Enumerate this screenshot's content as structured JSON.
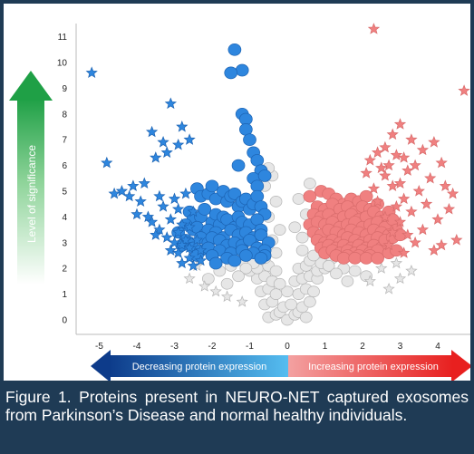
{
  "figure": {
    "caption": "Figure 1. Proteins present in NEURO-NET captured exosomes from Parkinson’s Disease and normal healthy individuals.",
    "colors": {
      "background": "#1f3b55",
      "decreased": "#2e86de",
      "increased": "#f08080",
      "neutral": "#e6e6e6",
      "significance_arrow": "#22a84a"
    }
  },
  "chart_data": {
    "type": "scatter",
    "title": "",
    "xlabel": "",
    "ylabel": "Level of significance",
    "xlim": [
      -5.5,
      5
    ],
    "ylim": [
      -0.4,
      11.5
    ],
    "x_ticks": [
      -5,
      -4,
      -3,
      -2,
      -1,
      0,
      1,
      2,
      3,
      4,
      5
    ],
    "y_ticks": [
      0,
      1,
      2,
      3,
      4,
      5,
      6,
      7,
      8,
      9,
      10,
      11
    ],
    "grid": false,
    "x_arrow_left_label": "Decreasing protein expression",
    "x_arrow_right_label": "Increasing protein expression",
    "marker_legend": "",
    "series": [
      {
        "group": "decreased",
        "marker": "circle",
        "color": "#2e86de",
        "x": [
          -1.4,
          -1.2,
          -1.5,
          -1.2,
          -1.1,
          -1.1,
          -1.0,
          -0.9,
          -0.8,
          -0.7,
          -1.3,
          -0.9,
          -0.8,
          -0.6,
          -2.4,
          -2.3,
          -2.1,
          -2.0,
          -1.9,
          -1.7,
          -1.6,
          -1.5,
          -1.4,
          -1.3,
          -1.2,
          -1.1,
          -1.0,
          -0.9,
          -0.8,
          -0.7,
          -0.6,
          -2.6,
          -2.5,
          -2.3,
          -2.2,
          -2.0,
          -1.9,
          -1.8,
          -1.7,
          -1.6,
          -1.4,
          -1.3,
          -1.2,
          -1.0,
          -0.8,
          -0.7,
          -2.7,
          -2.5,
          -2.4,
          -2.2,
          -2.1,
          -1.9,
          -1.7,
          -1.5,
          -1.3,
          -1.1,
          -0.9,
          -0.7,
          -0.5,
          -2.9,
          -2.7,
          -2.6,
          -2.3,
          -2.1,
          -2.0,
          -1.8,
          -1.6,
          -1.4,
          -1.2,
          -1.0,
          -0.8,
          -0.6,
          -2.8,
          -2.5,
          -2.3,
          -2.1,
          -1.8,
          -1.5,
          -1.2,
          -0.9,
          -0.6,
          -2.4,
          -2.0,
          -1.6,
          -1.1,
          -0.7,
          -1.9,
          -1.4
        ],
        "y": [
          10.5,
          9.7,
          9.6,
          8.0,
          7.8,
          7.4,
          7.0,
          6.5,
          6.2,
          5.8,
          6.0,
          5.5,
          5.2,
          5.6,
          5.1,
          4.8,
          4.9,
          5.2,
          4.7,
          5.0,
          4.6,
          4.8,
          4.9,
          4.4,
          4.6,
          4.7,
          4.3,
          4.5,
          4.8,
          4.4,
          4.1,
          4.2,
          3.9,
          4.0,
          4.3,
          3.8,
          4.1,
          3.7,
          4.0,
          3.9,
          3.6,
          4.0,
          3.8,
          3.7,
          3.9,
          3.5,
          3.7,
          3.5,
          3.6,
          3.3,
          3.5,
          3.4,
          3.2,
          3.5,
          3.3,
          3.4,
          3.2,
          3.3,
          3.0,
          3.4,
          3.1,
          3.0,
          3.2,
          3.0,
          3.2,
          3.1,
          2.9,
          3.0,
          2.9,
          3.1,
          2.8,
          2.7,
          2.9,
          2.8,
          2.7,
          2.8,
          2.7,
          2.6,
          2.7,
          2.6,
          2.5,
          2.5,
          2.5,
          2.4,
          2.5,
          2.4,
          2.2,
          2.3
        ]
      },
      {
        "group": "decreased",
        "marker": "star",
        "color": "#2e86de",
        "x": [
          -5.2,
          -3.1,
          -3.6,
          -2.8,
          -2.6,
          -3.3,
          -2.9,
          -4.8,
          -3.5,
          -3.2,
          -4.4,
          -4.1,
          -3.8,
          -4.6,
          -4.2,
          -3.9,
          -3.4,
          -2.7,
          -4.0,
          -3.7,
          -3.0,
          -3.3,
          -2.9,
          -2.5,
          -3.1,
          -3.6,
          -2.8,
          -2.6,
          -3.4,
          -2.9,
          -3.2,
          -2.7,
          -3.0,
          -3.5,
          -2.4,
          -2.8,
          -3.1,
          -2.6,
          -2.9,
          -2.3,
          -2.6,
          -2.8,
          -2.5,
          -2.3
        ],
        "y": [
          9.6,
          8.4,
          7.3,
          7.5,
          7.0,
          6.9,
          6.8,
          6.1,
          6.3,
          6.5,
          5.0,
          5.2,
          5.3,
          4.9,
          4.8,
          4.6,
          4.8,
          4.9,
          4.1,
          4.0,
          4.7,
          4.4,
          4.3,
          4.2,
          3.9,
          3.8,
          3.7,
          3.6,
          3.5,
          3.4,
          3.2,
          3.1,
          3.0,
          3.3,
          3.1,
          2.9,
          2.7,
          2.8,
          2.6,
          2.7,
          2.4,
          2.2,
          2.1,
          2.3
        ]
      },
      {
        "group": "increased",
        "marker": "circle",
        "color": "#f08080",
        "x": [
          0.9,
          1.1,
          0.6,
          1.3,
          1.5,
          1.7,
          1.9,
          2.1,
          0.8,
          1.0,
          1.2,
          1.4,
          1.6,
          1.8,
          2.0,
          2.2,
          2.4,
          0.7,
          0.9,
          1.1,
          1.3,
          1.5,
          1.7,
          1.9,
          2.1,
          2.3,
          2.5,
          2.7,
          0.6,
          0.8,
          1.0,
          1.2,
          1.4,
          1.6,
          1.8,
          2.0,
          2.2,
          2.4,
          2.6,
          2.8,
          0.7,
          0.9,
          1.1,
          1.3,
          1.5,
          1.7,
          1.9,
          2.1,
          2.3,
          2.5,
          2.7,
          2.9,
          0.8,
          1.0,
          1.2,
          1.4,
          1.6,
          1.8,
          2.0,
          2.2,
          2.4,
          2.6,
          0.9,
          1.1,
          1.3,
          1.5,
          1.7,
          1.9,
          2.1,
          2.3,
          2.5,
          1.0,
          1.2,
          1.4,
          1.6,
          1.8,
          2.0,
          2.2,
          2.4,
          1.3,
          1.6,
          1.9,
          2.2,
          1.5,
          1.8,
          2.1,
          2.4,
          2.6,
          2.8,
          3.0,
          2.7,
          2.9
        ],
        "y": [
          5.0,
          4.9,
          4.8,
          4.7,
          4.5,
          4.7,
          4.6,
          4.8,
          4.4,
          4.3,
          4.5,
          4.3,
          4.4,
          4.2,
          4.4,
          4.3,
          4.5,
          4.1,
          4.0,
          4.1,
          3.9,
          4.0,
          4.1,
          3.9,
          4.0,
          4.2,
          4.0,
          4.2,
          3.7,
          3.8,
          3.7,
          3.8,
          3.6,
          3.7,
          3.8,
          3.6,
          3.7,
          3.8,
          3.6,
          3.9,
          3.4,
          3.3,
          3.5,
          3.4,
          3.3,
          3.5,
          3.4,
          3.3,
          3.5,
          3.4,
          3.3,
          3.5,
          3.1,
          3.0,
          3.1,
          3.0,
          3.2,
          3.1,
          3.0,
          3.1,
          3.2,
          3.0,
          2.8,
          2.9,
          2.8,
          2.9,
          2.8,
          2.9,
          2.8,
          2.9,
          2.8,
          2.6,
          2.7,
          2.6,
          2.7,
          2.6,
          2.7,
          2.6,
          2.7,
          2.5,
          2.5,
          2.5,
          2.5,
          2.4,
          2.4,
          2.4,
          2.4,
          3.1,
          3.2,
          3.3,
          2.6,
          2.7
        ]
      },
      {
        "group": "increased",
        "marker": "star",
        "color": "#f08080",
        "x": [
          2.3,
          4.7,
          3.0,
          3.9,
          2.8,
          3.3,
          2.6,
          2.4,
          3.6,
          3.1,
          2.9,
          2.2,
          2.7,
          4.1,
          3.4,
          2.5,
          3.2,
          2.1,
          3.8,
          2.6,
          4.2,
          3.0,
          2.3,
          3.5,
          2.8,
          4.4,
          3.1,
          2.4,
          3.7,
          2.9,
          4.3,
          3.3,
          2.6,
          4.0,
          3.0,
          4.5,
          3.6,
          2.8,
          3.2,
          4.1,
          3.4,
          2.7,
          3.9,
          3.1
        ],
        "y": [
          11.3,
          8.9,
          7.6,
          6.9,
          7.2,
          7.0,
          6.7,
          6.5,
          6.6,
          6.3,
          6.4,
          6.2,
          6.0,
          6.1,
          6.0,
          5.9,
          5.8,
          5.7,
          5.5,
          5.6,
          5.2,
          5.3,
          5.1,
          5.0,
          5.2,
          4.9,
          4.7,
          4.6,
          4.5,
          4.4,
          4.3,
          4.2,
          4.0,
          3.9,
          3.8,
          3.1,
          3.5,
          3.4,
          3.3,
          2.9,
          3.0,
          2.9,
          2.7,
          2.6
        ]
      },
      {
        "group": "not significant",
        "marker": "circle",
        "color": "#e6e6e6",
        "x": [
          -0.5,
          -0.3,
          -0.2,
          0.0,
          0.2,
          0.3,
          0.5,
          -0.6,
          -0.4,
          -0.1,
          0.1,
          0.4,
          0.6,
          -0.7,
          -0.5,
          -0.3,
          0.0,
          0.3,
          0.5,
          0.7,
          -0.8,
          -0.6,
          -0.4,
          -0.2,
          0.2,
          0.4,
          0.6,
          0.8,
          -1.0,
          -0.8,
          -0.5,
          -0.3,
          0.3,
          0.5,
          0.8,
          1.0,
          -1.2,
          -0.9,
          -0.6,
          0.6,
          0.9,
          1.2,
          -1.5,
          -1.1,
          -0.7,
          0.7,
          1.1,
          1.5,
          -1.8,
          -1.3,
          -0.9,
          0.9,
          1.3,
          1.8,
          -2.1,
          -1.6,
          1.6,
          2.1,
          -0.4,
          0.4,
          -0.2,
          0.2,
          -0.5,
          0.5,
          -0.3,
          0.3,
          -0.6,
          0.6,
          -0.4,
          -0.5,
          -0.3,
          0.4
        ],
        "y": [
          0.1,
          0.2,
          0.3,
          0.0,
          0.2,
          0.3,
          0.1,
          0.6,
          0.7,
          0.5,
          0.6,
          0.5,
          0.7,
          1.1,
          1.2,
          1.0,
          1.1,
          1.0,
          1.2,
          1.1,
          1.6,
          1.7,
          1.5,
          1.4,
          1.5,
          1.6,
          1.7,
          1.6,
          1.9,
          2.0,
          2.1,
          1.9,
          2.0,
          2.1,
          1.9,
          2.0,
          2.3,
          2.2,
          2.4,
          2.3,
          2.2,
          2.4,
          2.1,
          2.0,
          2.6,
          2.5,
          2.1,
          2.0,
          1.9,
          1.7,
          2.8,
          2.9,
          1.8,
          1.9,
          1.6,
          1.4,
          1.5,
          1.7,
          3.1,
          3.2,
          3.5,
          3.6,
          4.0,
          4.1,
          4.6,
          4.7,
          5.2,
          5.3,
          5.6,
          5.9,
          2.6,
          2.7
        ]
      },
      {
        "group": "not significant",
        "marker": "star",
        "color": "#e6e6e6",
        "x": [
          -2.6,
          -2.2,
          -1.9,
          -1.6,
          -1.2,
          2.5,
          2.9,
          3.3,
          3.0,
          2.7,
          -2.4,
          2.2
        ],
        "y": [
          1.6,
          1.3,
          1.1,
          0.9,
          0.7,
          2.0,
          2.2,
          1.9,
          1.6,
          1.2,
          2.1,
          1.5
        ]
      }
    ]
  }
}
